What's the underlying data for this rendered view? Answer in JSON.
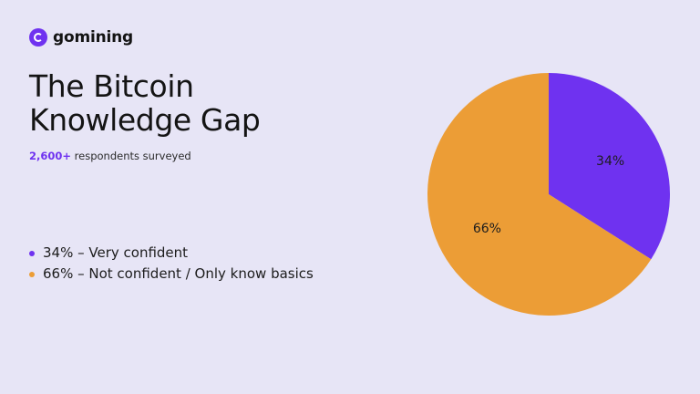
{
  "brand": {
    "name": "gomining",
    "icon": "gomining-logo-icon",
    "color": "#6f32f0"
  },
  "title": "The Bitcoin Knowledge Gap",
  "subtitle": {
    "highlight": "2,600+",
    "text": " respondents surveyed"
  },
  "legend": [
    {
      "text": "34% – Very confident",
      "color": "#6f32f0"
    },
    {
      "text": "66% – Not confident / Only know basics",
      "color": "#ec9d36"
    }
  ],
  "chart_data": {
    "type": "pie",
    "slices": [
      {
        "label": "34%",
        "value": 34,
        "color": "#6f32f0"
      },
      {
        "label": "66%",
        "value": 66,
        "color": "#ec9d36"
      }
    ],
    "start": "12 o'clock",
    "direction": "clockwise"
  }
}
